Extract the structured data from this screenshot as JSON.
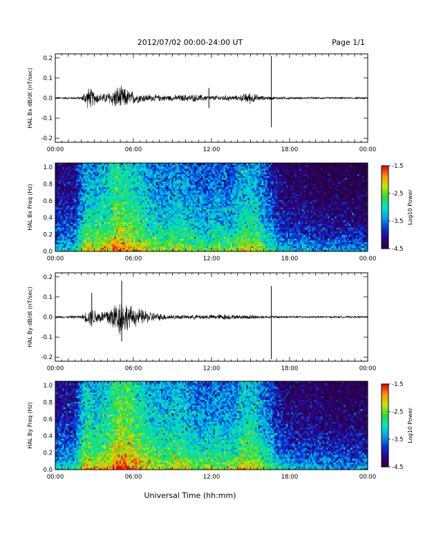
{
  "header": {
    "title": "2012/07/02  00:00-24:00 UT",
    "page": "Page 1/1"
  },
  "xlabel": "Universal Time (hh:mm)",
  "chart_data": [
    {
      "type": "line",
      "ylabel": "HAL Bx dB/dt (nT/sec)",
      "xlim": [
        0,
        24
      ],
      "ylim": [
        -0.22,
        0.22
      ],
      "yticks": [
        "-0.2",
        "-0.1",
        "0.0",
        "0.1",
        "0.2"
      ],
      "yticks_values": [
        -0.2,
        -0.1,
        0.0,
        0.1,
        0.2
      ],
      "xticks": [
        "00:00",
        "06:00",
        "12:00",
        "18:00",
        "00:00"
      ],
      "xticks_values": [
        0,
        6,
        12,
        18,
        24
      ],
      "envelope": {
        "x": [
          0,
          2.0,
          2.2,
          2.6,
          3.0,
          3.4,
          3.8,
          4.4,
          4.8,
          5.2,
          5.6,
          6.4,
          7.2,
          8.0,
          9.0,
          10.0,
          11.0,
          12.0,
          13.0,
          14.0,
          14.6,
          15.0,
          15.4,
          16.0,
          17.0,
          18.0,
          20.0,
          24.0
        ],
        "y": [
          0.004,
          0.005,
          0.025,
          0.045,
          0.03,
          0.02,
          0.02,
          0.035,
          0.05,
          0.045,
          0.035,
          0.02,
          0.015,
          0.013,
          0.012,
          0.015,
          0.015,
          0.01,
          0.012,
          0.01,
          0.02,
          0.025,
          0.015,
          0.008,
          0.006,
          0.005,
          0.004,
          0.004
        ]
      },
      "spikes": [
        {
          "x": 11.8,
          "ymin": -0.05,
          "ymax": 0.05
        },
        {
          "x": 16.6,
          "ymin": -0.145,
          "ymax": 0.21
        }
      ]
    },
    {
      "type": "heatmap",
      "ylabel": "HAL Bx Freq (Hz)",
      "xlim": [
        0,
        24
      ],
      "ylim": [
        0,
        1.05
      ],
      "yticks": [
        "0.0",
        "0.2",
        "0.4",
        "0.6",
        "0.8",
        "1.0"
      ],
      "yticks_values": [
        0,
        0.2,
        0.4,
        0.6,
        0.8,
        1.0
      ],
      "xticks": [
        "00:00",
        "06:00",
        "12:00",
        "18:00",
        "00:00"
      ],
      "xticks_values": [
        0,
        6,
        12,
        18,
        24
      ],
      "colorbar": {
        "label": "Log10 Power",
        "range": [
          -4.5,
          -1.5
        ],
        "ticks": [
          "-1.5",
          "-2.5",
          "-3.5",
          "-4.5"
        ],
        "ticks_values": [
          -1.5,
          -2.5,
          -3.5,
          -4.5
        ]
      },
      "activity": {
        "x": [
          0,
          1.5,
          2.0,
          2.4,
          3.0,
          4.0,
          4.8,
          5.6,
          6.5,
          7.5,
          8.5,
          9.5,
          10.5,
          11.5,
          12.5,
          13.5,
          14.5,
          15.5,
          16.0,
          16.6,
          17.0,
          18.0,
          20.0,
          24.0
        ],
        "level": [
          -4.0,
          -3.9,
          -3.3,
          -3.0,
          -3.1,
          -2.9,
          -2.6,
          -2.7,
          -2.9,
          -3.2,
          -3.3,
          -3.1,
          -3.3,
          -3.4,
          -3.3,
          -3.4,
          -3.0,
          -3.1,
          -3.4,
          -3.6,
          -3.9,
          -4.1,
          -4.2,
          -4.3
        ]
      }
    },
    {
      "type": "line",
      "ylabel": "HAL By dB/dt (nT/sec)",
      "xlim": [
        0,
        24
      ],
      "ylim": [
        -0.22,
        0.22
      ],
      "yticks": [
        "-0.2",
        "-0.1",
        "0.0",
        "0.1",
        "0.2"
      ],
      "yticks_values": [
        -0.2,
        -0.1,
        0.0,
        0.1,
        0.2
      ],
      "xticks": [
        "00:00",
        "06:00",
        "12:00",
        "18:00",
        "00:00"
      ],
      "xticks_values": [
        0,
        6,
        12,
        18,
        24
      ],
      "envelope": {
        "x": [
          0,
          2.0,
          2.4,
          2.8,
          3.2,
          3.6,
          4.0,
          4.6,
          5.0,
          5.4,
          5.8,
          6.4,
          7.2,
          8.0,
          9.0,
          10.0,
          11.0,
          12.0,
          13.0,
          14.0,
          15.0,
          16.0,
          17.0,
          18.0,
          20.0,
          24.0
        ],
        "y": [
          0.004,
          0.006,
          0.025,
          0.04,
          0.03,
          0.025,
          0.04,
          0.06,
          0.08,
          0.06,
          0.045,
          0.035,
          0.025,
          0.015,
          0.01,
          0.008,
          0.01,
          0.01,
          0.012,
          0.008,
          0.01,
          0.006,
          0.005,
          0.005,
          0.004,
          0.004
        ]
      },
      "spikes": [
        {
          "x": 2.8,
          "ymin": -0.04,
          "ymax": 0.12
        },
        {
          "x": 5.1,
          "ymin": -0.12,
          "ymax": 0.18
        },
        {
          "x": 16.6,
          "ymin": -0.21,
          "ymax": 0.155
        }
      ]
    },
    {
      "type": "heatmap",
      "ylabel": "HAL By Freq (Hz)",
      "xlim": [
        0,
        24
      ],
      "ylim": [
        0,
        1.05
      ],
      "yticks": [
        "0.0",
        "0.2",
        "0.4",
        "0.6",
        "0.8",
        "1.0"
      ],
      "yticks_values": [
        0,
        0.2,
        0.4,
        0.6,
        0.8,
        1.0
      ],
      "xticks": [
        "00:00",
        "06:00",
        "12:00",
        "18:00",
        "00:00"
      ],
      "xticks_values": [
        0,
        6,
        12,
        18,
        24
      ],
      "colorbar": {
        "label": "Log10 Power",
        "range": [
          -4.5,
          -1.5
        ],
        "ticks": [
          "-1.5",
          "-2.5",
          "-3.5",
          "-4.5"
        ],
        "ticks_values": [
          -1.5,
          -2.5,
          -3.5,
          -4.5
        ]
      },
      "activity": {
        "x": [
          0,
          1.5,
          2.0,
          2.4,
          3.0,
          4.0,
          4.8,
          5.6,
          6.5,
          7.5,
          8.5,
          9.5,
          10.5,
          11.5,
          12.5,
          13.5,
          14.5,
          15.5,
          16.0,
          16.6,
          17.0,
          18.0,
          20.0,
          24.0
        ],
        "level": [
          -3.9,
          -3.8,
          -3.2,
          -2.8,
          -3.0,
          -2.8,
          -2.4,
          -2.5,
          -2.7,
          -3.0,
          -3.1,
          -3.0,
          -3.2,
          -3.3,
          -3.2,
          -3.3,
          -2.9,
          -3.0,
          -3.3,
          -3.5,
          -3.8,
          -4.0,
          -4.1,
          -4.2
        ]
      }
    }
  ]
}
